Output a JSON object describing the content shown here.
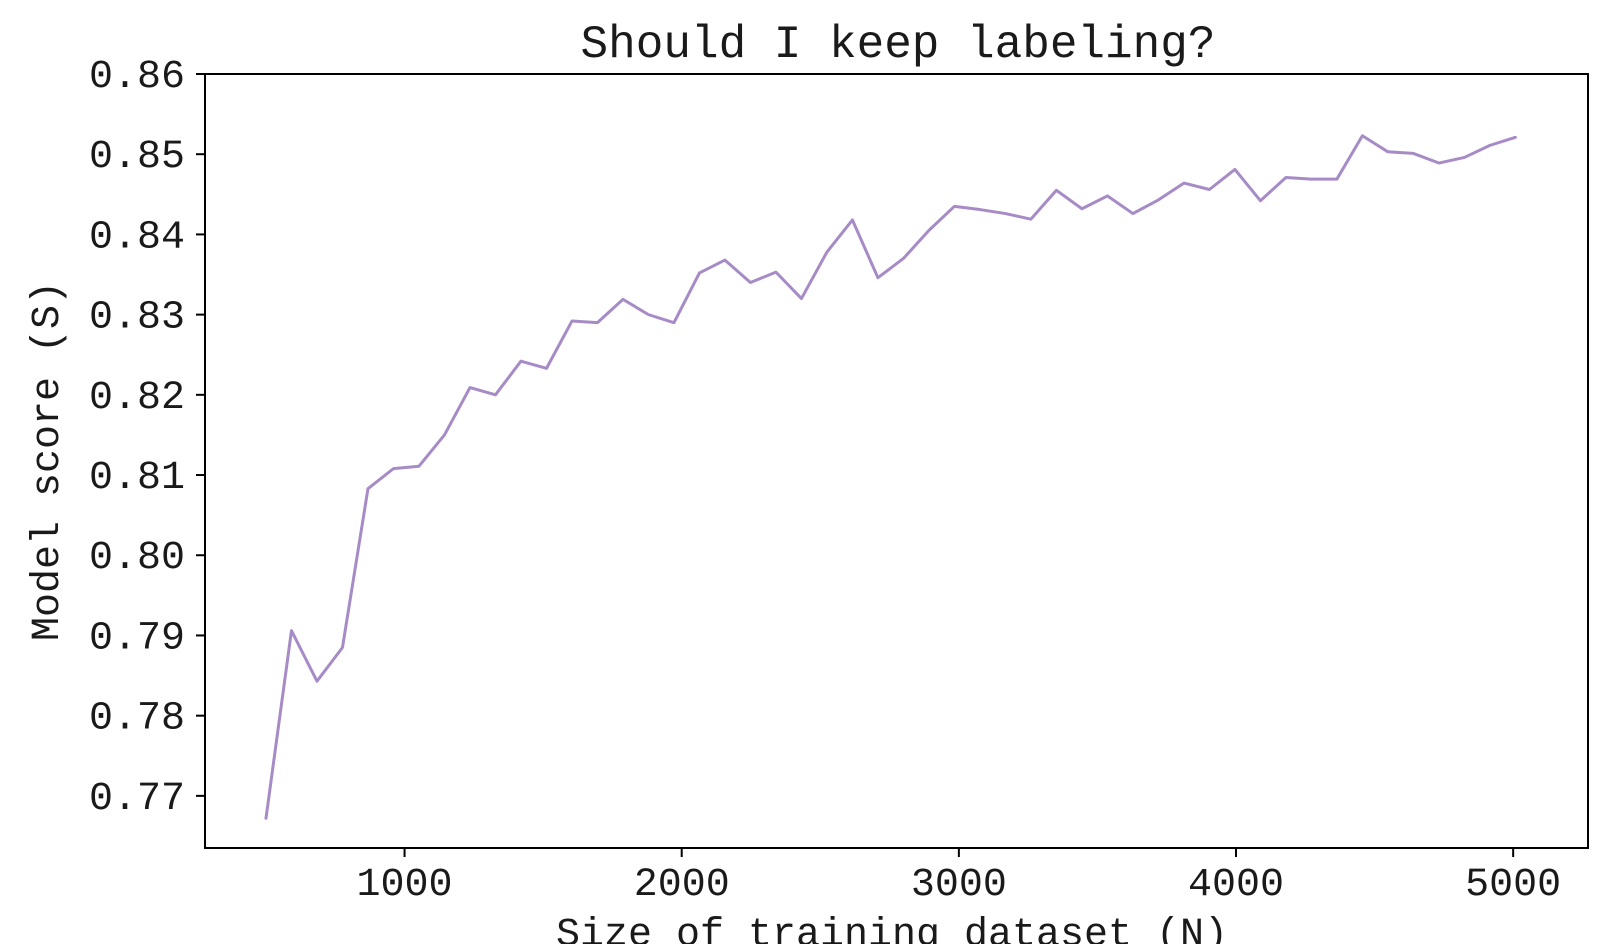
{
  "chart_data": {
    "type": "line",
    "title": "Should I keep labeling?",
    "xlabel": "Size of training dataset (N)",
    "ylabel": "Model score (S)",
    "xlim": [
      280,
      5270
    ],
    "ylim": [
      0.7635,
      0.86
    ],
    "xticks": [
      1000,
      2000,
      3000,
      4000,
      5000
    ],
    "xtick_labels": [
      "1000",
      "2000",
      "3000",
      "4000",
      "5000"
    ],
    "yticks": [
      0.77,
      0.78,
      0.79,
      0.8,
      0.81,
      0.82,
      0.83,
      0.84,
      0.85,
      0.86
    ],
    "ytick_labels": [
      "0.77",
      "0.78",
      "0.79",
      "0.80",
      "0.81",
      "0.82",
      "0.83",
      "0.84",
      "0.85",
      "0.86"
    ],
    "grid": false,
    "legend": "none",
    "series": [
      {
        "color": "#a68bc6",
        "x": [
          500,
          592,
          684,
          776,
          868,
          960,
          1052,
          1144,
          1236,
          1328,
          1420,
          1512,
          1604,
          1696,
          1788,
          1880,
          1972,
          2064,
          2156,
          2248,
          2340,
          2432,
          2524,
          2616,
          2708,
          2800,
          2892,
          2984,
          3076,
          3168,
          3260,
          3352,
          3444,
          3536,
          3628,
          3720,
          3812,
          3904,
          3996,
          4088,
          4180,
          4272,
          4364,
          4456,
          4548,
          4640,
          4732,
          4824,
          4916,
          5008
        ],
        "values": [
          0.7672,
          0.7906,
          0.7843,
          0.7885,
          0.8083,
          0.8108,
          0.8111,
          0.815,
          0.8209,
          0.82,
          0.8242,
          0.8233,
          0.8292,
          0.829,
          0.8319,
          0.83,
          0.829,
          0.8352,
          0.8368,
          0.834,
          0.8353,
          0.832,
          0.8378,
          0.8418,
          0.8346,
          0.837,
          0.8405,
          0.8435,
          0.8431,
          0.8426,
          0.8419,
          0.8455,
          0.8432,
          0.8448,
          0.8426,
          0.8443,
          0.8464,
          0.8456,
          0.8481,
          0.8442,
          0.8471,
          0.8469,
          0.8469,
          0.8523,
          0.8503,
          0.8501,
          0.8489,
          0.8496,
          0.8511,
          0.8521
        ]
      }
    ]
  }
}
